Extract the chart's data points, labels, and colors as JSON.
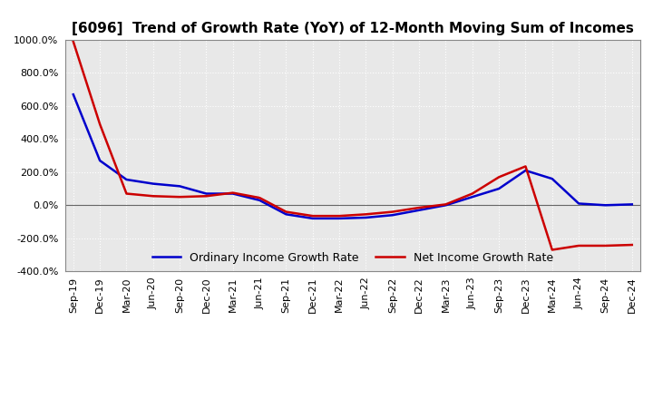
{
  "title": "[6096]  Trend of Growth Rate (YoY) of 12-Month Moving Sum of Incomes",
  "xlabels": [
    "Sep-19",
    "Dec-19",
    "Mar-20",
    "Jun-20",
    "Sep-20",
    "Dec-20",
    "Mar-21",
    "Jun-21",
    "Sep-21",
    "Dec-21",
    "Mar-22",
    "Jun-22",
    "Sep-22",
    "Dec-22",
    "Mar-23",
    "Jun-23",
    "Sep-23",
    "Dec-23",
    "Mar-24",
    "Jun-24",
    "Sep-24",
    "Dec-24"
  ],
  "ordinary_income": [
    670,
    270,
    155,
    130,
    115,
    70,
    70,
    30,
    -55,
    -80,
    -80,
    -75,
    -60,
    -30,
    0,
    50,
    100,
    210,
    160,
    10,
    0,
    5
  ],
  "net_income": [
    990,
    490,
    70,
    55,
    50,
    55,
    75,
    45,
    -40,
    -65,
    -65,
    -55,
    -40,
    -15,
    5,
    70,
    170,
    235,
    -270,
    -245,
    -245,
    -240
  ],
  "ordinary_color": "#0000cc",
  "net_color": "#cc0000",
  "ylim": [
    -400,
    1000
  ],
  "yticks": [
    -400,
    -200,
    0,
    200,
    400,
    600,
    800,
    1000
  ],
  "plot_bg_color": "#e8e8e8",
  "fig_bg_color": "#ffffff",
  "grid_color": "#ffffff",
  "spine_color": "#888888",
  "legend_ordinary": "Ordinary Income Growth Rate",
  "legend_net": "Net Income Growth Rate",
  "title_fontsize": 11,
  "tick_fontsize": 8,
  "legend_fontsize": 9,
  "linewidth": 1.8
}
